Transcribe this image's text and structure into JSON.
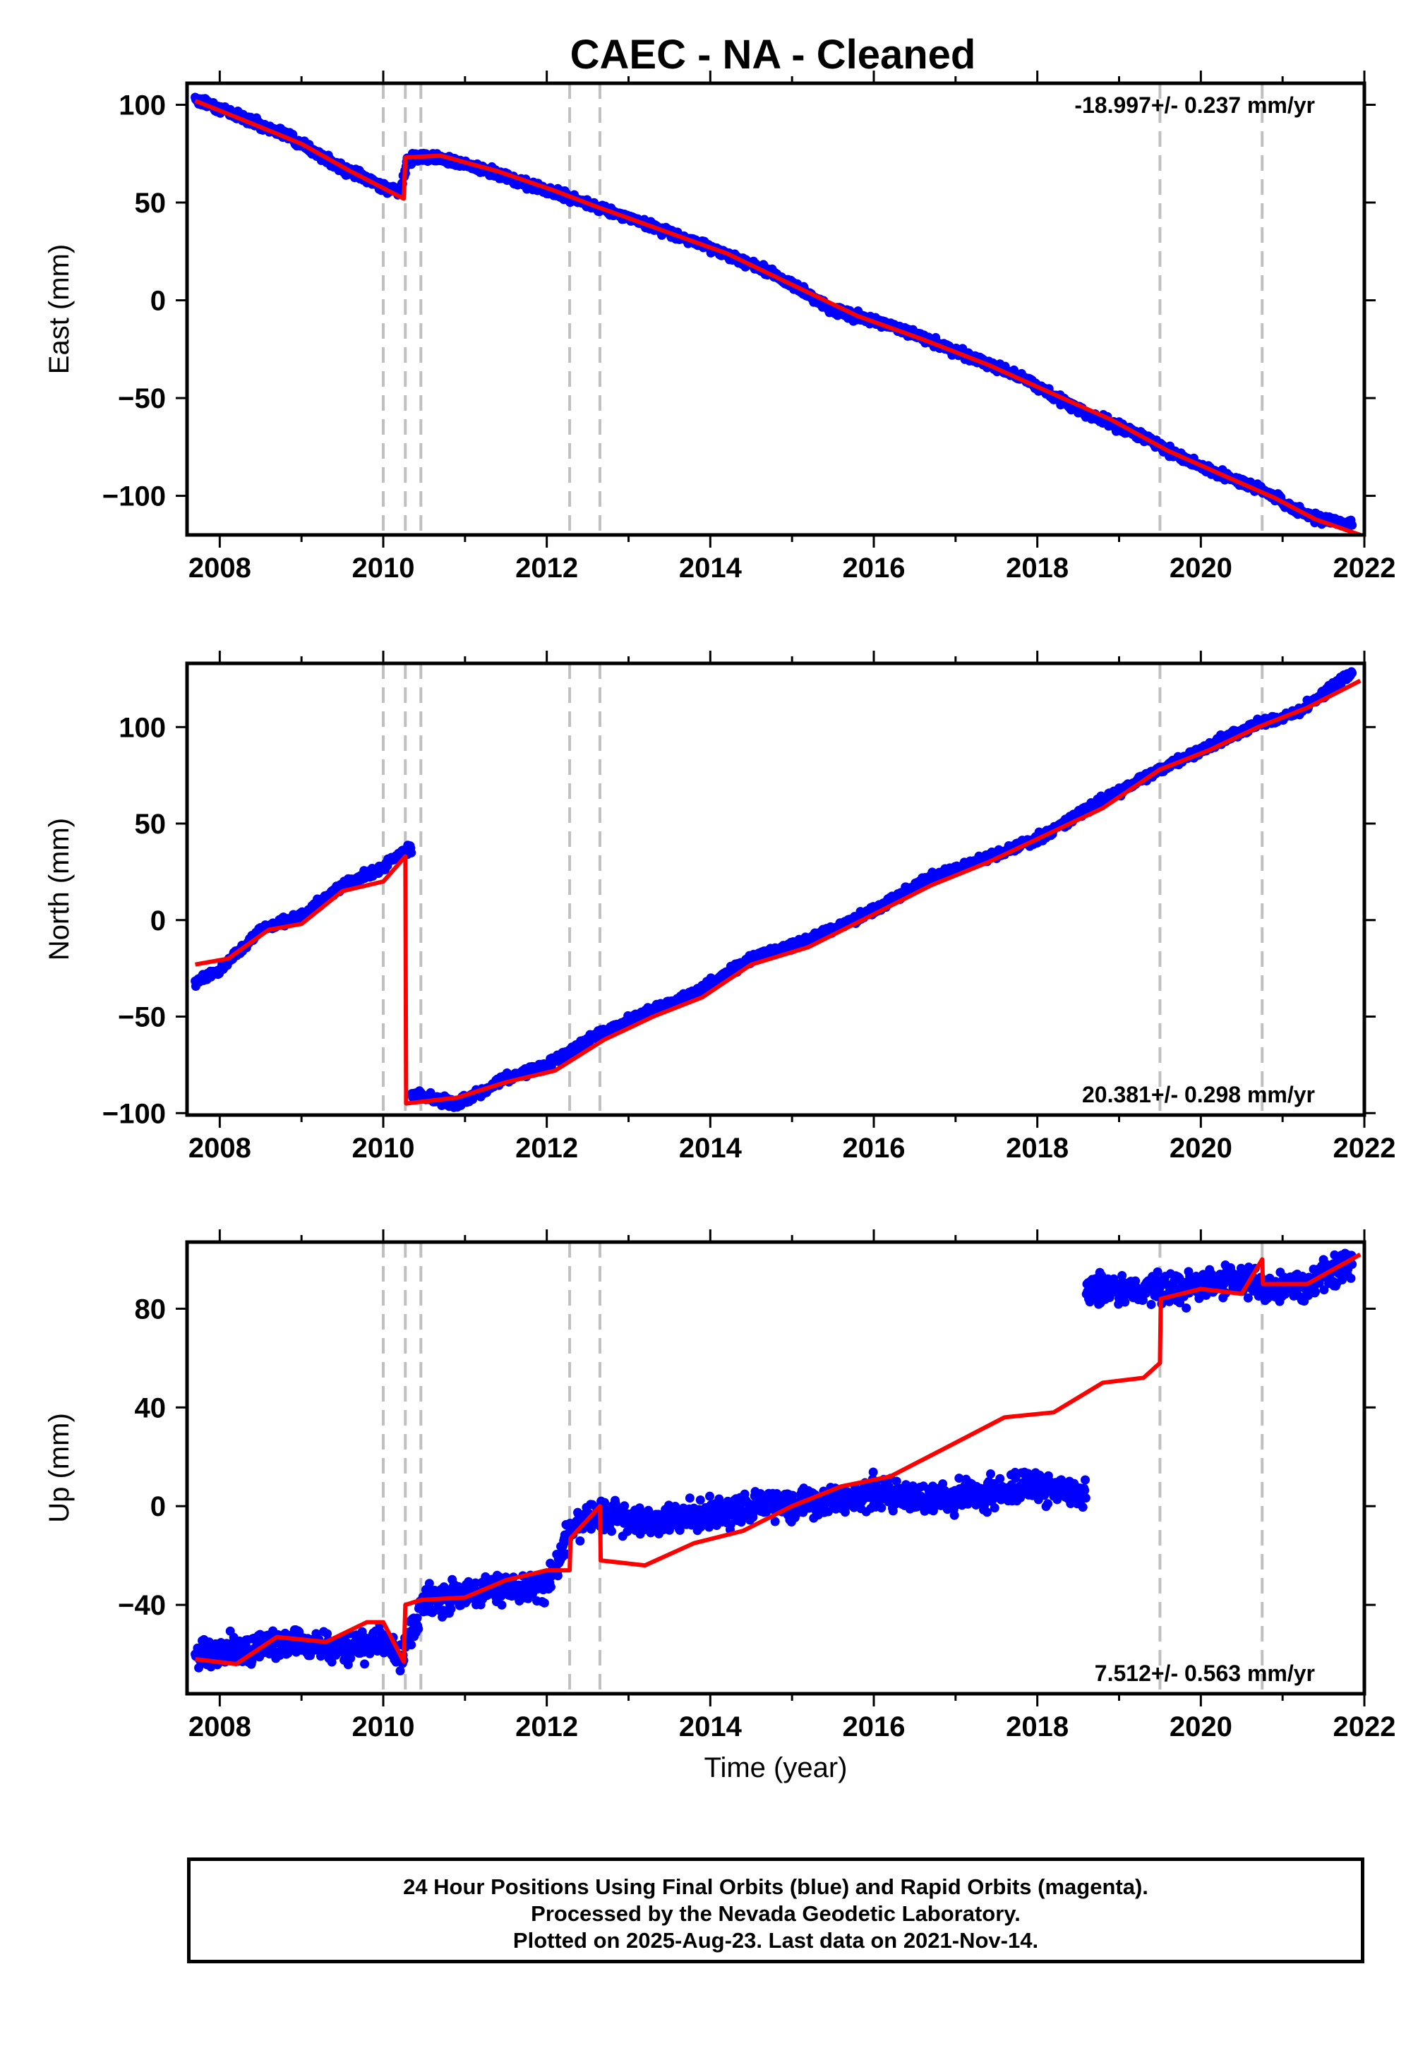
{
  "title": "CAEC  - NA - Cleaned",
  "colors": {
    "observed": "#0000ff",
    "model": "#ff0000",
    "event_lines": "#c0c0c0"
  },
  "chart_data": [
    {
      "type": "scatter",
      "component": "East",
      "ylabel": "East (mm)",
      "xlabel": "",
      "xlim": [
        2007.6,
        2022.0
      ],
      "ylim": [
        -120,
        111
      ],
      "yticks": [
        -100,
        -50,
        0,
        50,
        100
      ],
      "xticks": [
        2008,
        2010,
        2012,
        2014,
        2016,
        2018,
        2020,
        2022
      ],
      "event_lines_x": [
        2010.0,
        2010.27,
        2010.46,
        2012.28,
        2012.65,
        2019.5,
        2020.75
      ],
      "rate_text": "-18.997+/- 0.237 mm/yr",
      "rate_position": "top-right",
      "observed": {
        "x": [
          2007.7,
          2008.2,
          2008.9,
          2009.5,
          2010.2,
          2010.3,
          2010.6,
          2011.3,
          2012.0,
          2012.6,
          2013.3,
          2014.0,
          2014.8,
          2015.5,
          2016.3,
          2017.0,
          2017.8,
          2018.5,
          2019.3,
          2020.0,
          2020.8,
          2021.3,
          2021.85
        ],
        "y": [
          103,
          95,
          83,
          67,
          55,
          72,
          74,
          66,
          56,
          48,
          38,
          27,
          13,
          -5,
          -14,
          -26,
          -39,
          -56,
          -70,
          -85,
          -98,
          -110,
          -115
        ]
      },
      "model": {
        "x": [
          2007.7,
          2008.3,
          2009.0,
          2009.6,
          2010.25,
          2010.27,
          2010.7,
          2011.4,
          2012.1,
          2012.6,
          2013.4,
          2014.2,
          2015.0,
          2015.8,
          2016.6,
          2017.4,
          2018.2,
          2018.9,
          2019.6,
          2020.3,
          2020.9,
          2021.4,
          2021.95
        ],
        "y": [
          102,
          92,
          80,
          66,
          52,
          73,
          74,
          66,
          56,
          48,
          36,
          24,
          8,
          -8,
          -20,
          -33,
          -48,
          -61,
          -77,
          -90,
          -101,
          -112,
          -120
        ]
      }
    },
    {
      "type": "scatter",
      "component": "North",
      "ylabel": "North (mm)",
      "xlabel": "",
      "xlim": [
        2007.6,
        2022.0
      ],
      "ylim": [
        -101,
        133
      ],
      "yticks": [
        -100,
        -50,
        0,
        50,
        100
      ],
      "xticks": [
        2008,
        2010,
        2012,
        2014,
        2016,
        2018,
        2020,
        2022
      ],
      "event_lines_x": [
        2010.0,
        2010.27,
        2010.46,
        2012.28,
        2012.65,
        2019.5,
        2020.75
      ],
      "rate_text": "20.381+/- 0.298 mm/yr",
      "rate_position": "bottom-right",
      "observed": {
        "x": [
          2007.7,
          2008.0,
          2008.5,
          2009.0,
          2009.5,
          2010.0,
          2010.25,
          2010.35,
          2010.9,
          2011.5,
          2012.0,
          2012.6,
          2013.2,
          2013.8,
          2014.5,
          2015.2,
          2016.0,
          2016.7,
          2017.4,
          2018.0,
          2018.7,
          2019.5,
          2020.0,
          2020.6,
          2021.2,
          2021.85
        ],
        "y": [
          -32,
          -26,
          -5,
          2,
          18,
          27,
          36,
          -90,
          -95,
          -82,
          -75,
          -60,
          -48,
          -38,
          -20,
          -10,
          5,
          22,
          32,
          42,
          60,
          78,
          88,
          100,
          108,
          128
        ]
      },
      "model": {
        "x": [
          2007.7,
          2008.1,
          2008.6,
          2009.0,
          2009.5,
          2010.0,
          2010.27,
          2010.28,
          2010.9,
          2011.5,
          2012.1,
          2012.7,
          2013.3,
          2013.9,
          2014.5,
          2015.2,
          2016.0,
          2016.7,
          2017.4,
          2018.1,
          2018.8,
          2019.5,
          2020.1,
          2020.7,
          2021.3,
          2021.95
        ],
        "y": [
          -23,
          -20,
          -5,
          -2,
          15,
          20,
          33,
          -95,
          -92,
          -84,
          -78,
          -62,
          -50,
          -40,
          -23,
          -14,
          3,
          18,
          30,
          44,
          58,
          78,
          88,
          100,
          110,
          124
        ]
      }
    },
    {
      "type": "scatter",
      "component": "Up",
      "ylabel": "Up (mm)",
      "xlabel": "Time (year)",
      "xlim": [
        2007.6,
        2022.0
      ],
      "ylim": [
        -76,
        107
      ],
      "yticks": [
        -40,
        0,
        40,
        80
      ],
      "xticks": [
        2008,
        2010,
        2012,
        2014,
        2016,
        2018,
        2020,
        2022
      ],
      "event_lines_x": [
        2010.0,
        2010.27,
        2010.46,
        2012.28,
        2012.65,
        2019.5,
        2020.75
      ],
      "rate_text": "7.512+/- 0.563 mm/yr",
      "rate_position": "bottom-right",
      "observed": {
        "x": [
          2007.7,
          2008.3,
          2008.9,
          2009.6,
          2010.0,
          2010.2,
          2010.5,
          2011.0,
          2011.6,
          2012.0,
          2012.3,
          2012.8,
          2013.3,
          2013.9,
          2014.6,
          2015.3,
          2016.0,
          2016.8,
          2017.5,
          2018.0,
          2018.4,
          2018.6,
          2019.2,
          2019.8,
          2020.4,
          2020.9,
          2021.3,
          2021.85
        ],
        "y": [
          -60,
          -58,
          -55,
          -58,
          -55,
          -62,
          -40,
          -35,
          -33,
          -32,
          -8,
          -4,
          -6,
          -4,
          0,
          2,
          5,
          3,
          6,
          8,
          6,
          88,
          88,
          88,
          92,
          88,
          90,
          98
        ]
      },
      "model": {
        "x": [
          2007.7,
          2008.2,
          2008.7,
          2009.3,
          2009.8,
          2010.0,
          2010.25,
          2010.27,
          2010.46,
          2011.0,
          2011.5,
          2012.0,
          2012.28,
          2012.29,
          2012.65,
          2012.66,
          2013.2,
          2013.8,
          2014.4,
          2015.0,
          2015.6,
          2016.2,
          2016.9,
          2017.6,
          2018.2,
          2018.8,
          2019.3,
          2019.5,
          2019.51,
          2020.0,
          2020.5,
          2020.75,
          2020.76,
          2021.3,
          2021.95
        ],
        "y": [
          -62,
          -64,
          -53,
          -55,
          -47,
          -47,
          -63,
          -40,
          -38,
          -37,
          -30,
          -26,
          -26,
          -13,
          0,
          -22,
          -24,
          -15,
          -10,
          0,
          8,
          12,
          24,
          36,
          38,
          50,
          52,
          58,
          84,
          88,
          86,
          100,
          90,
          90,
          102
        ]
      }
    }
  ],
  "footer": {
    "line1": "24 Hour Positions Using Final Orbits (blue) and Rapid Orbits (magenta).",
    "line2": "Processed by the Nevada Geodetic Laboratory.",
    "line3": "Plotted on 2025-Aug-23. Last data on 2021-Nov-14."
  }
}
